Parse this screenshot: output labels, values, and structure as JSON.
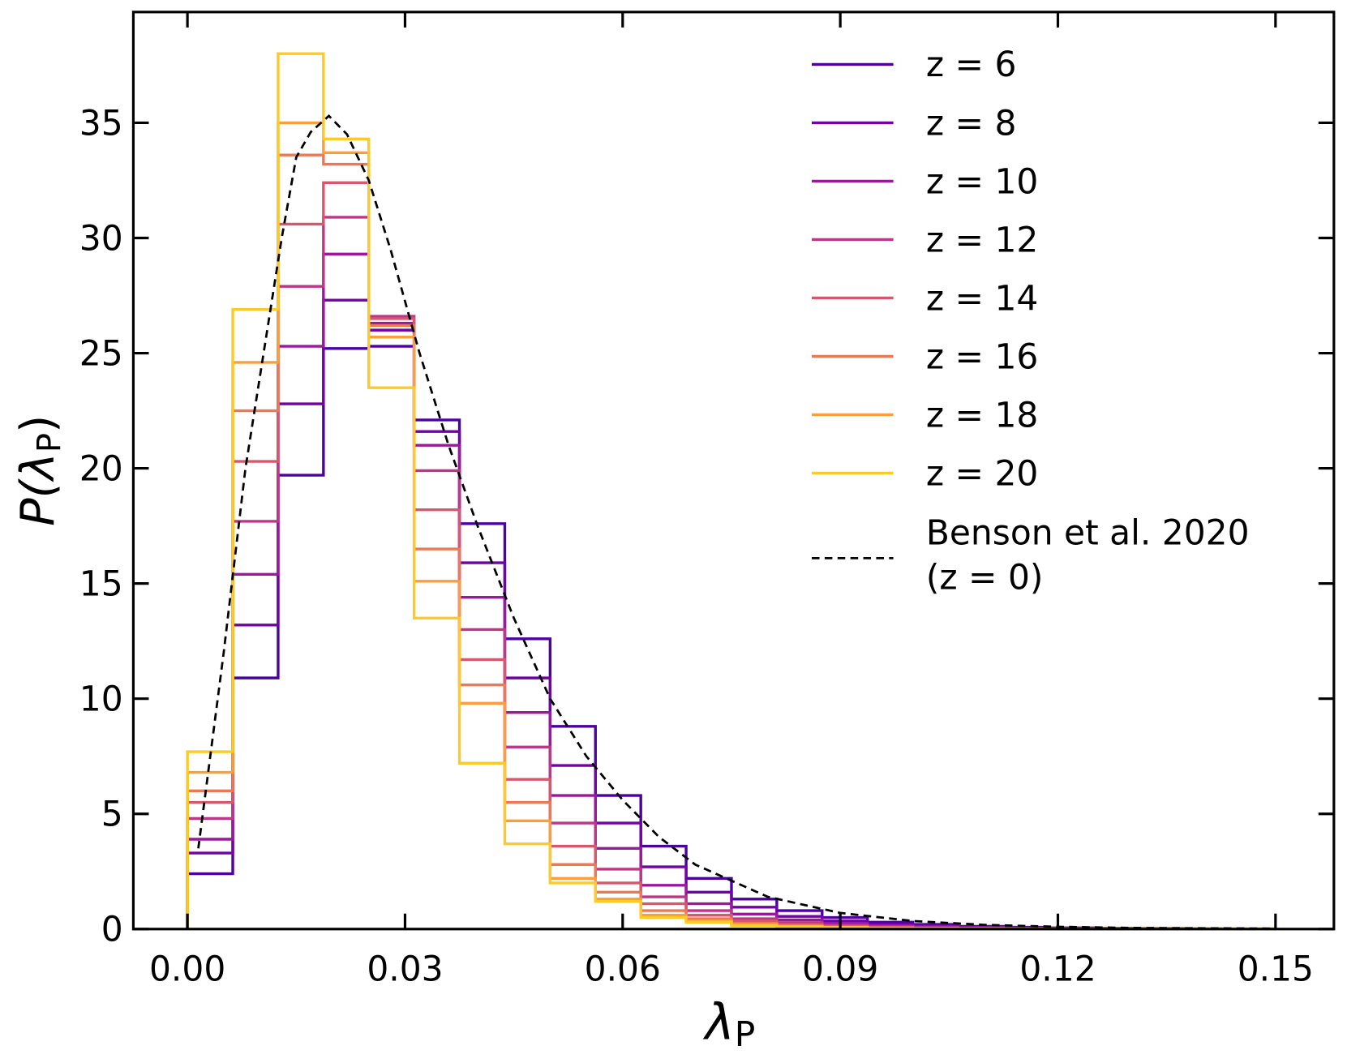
{
  "chart_data": {
    "type": "histogram-step",
    "xlabel": "λ",
    "xlabel_sub": "P",
    "ylabel": "P(λ",
    "ylabel_sub": "P",
    "ylabel_close": ")",
    "xlim": [
      -0.0125,
      0.1535
    ],
    "ylim": [
      0,
      38.4
    ],
    "xticks": [
      0.0,
      0.03,
      0.06,
      0.09,
      0.12,
      0.15
    ],
    "xtick_labels": [
      "0.00",
      "0.03",
      "0.06",
      "0.09",
      "0.12",
      "0.15"
    ],
    "yticks": [
      0,
      5,
      10,
      15,
      20,
      25,
      30,
      35
    ],
    "ytick_labels": [
      "0",
      "5",
      "10",
      "15",
      "20",
      "25",
      "30",
      "35"
    ],
    "bin_width": 0.00625,
    "legend_position": "top-right",
    "series": [
      {
        "name": "z = 6",
        "color": "#4c02a1",
        "values": [
          2.4,
          10.9,
          19.7,
          25.2,
          25.3,
          22.1,
          17.6,
          12.6,
          8.8,
          5.8,
          3.6,
          2.2,
          1.3,
          0.8,
          0.5,
          0.3,
          0.2,
          0.12,
          0.08,
          0.05,
          0.03,
          0.02,
          0.01,
          0.01
        ]
      },
      {
        "name": "z = 8",
        "color": "#7301a8",
        "values": [
          3.3,
          13.2,
          22.8,
          27.3,
          26.0,
          21.6,
          15.9,
          10.9,
          7.1,
          4.6,
          2.7,
          1.6,
          0.95,
          0.55,
          0.35,
          0.2,
          0.13,
          0.08,
          0.05,
          0.03,
          0.02,
          0.01,
          0.01,
          0.0
        ]
      },
      {
        "name": "z = 10",
        "color": "#9c179e",
        "values": [
          3.9,
          15.4,
          25.3,
          29.3,
          26.3,
          21.0,
          14.4,
          9.4,
          5.8,
          3.5,
          1.9,
          1.1,
          0.65,
          0.4,
          0.25,
          0.15,
          0.1,
          0.06,
          0.04,
          0.02,
          0.01,
          0.01,
          0.0,
          0.0
        ]
      },
      {
        "name": "z = 12",
        "color": "#bd3786",
        "values": [
          4.8,
          17.7,
          27.9,
          30.9,
          26.6,
          19.9,
          13.0,
          7.9,
          4.6,
          2.6,
          1.4,
          0.8,
          0.45,
          0.28,
          0.17,
          0.1,
          0.06,
          0.04,
          0.02,
          0.01,
          0.01,
          0.0,
          0.0,
          0.0
        ]
      },
      {
        "name": "z = 14",
        "color": "#d8576b",
        "values": [
          5.5,
          20.3,
          30.6,
          32.4,
          26.5,
          18.2,
          11.7,
          6.5,
          3.6,
          2.0,
          1.1,
          0.6,
          0.35,
          0.2,
          0.12,
          0.07,
          0.04,
          0.02,
          0.01,
          0.01,
          0.0,
          0.0,
          0.0,
          0.0
        ]
      },
      {
        "name": "z = 16",
        "color": "#ed7953",
        "values": [
          6.0,
          22.5,
          33.6,
          33.2,
          26.2,
          16.5,
          10.6,
          5.5,
          2.8,
          1.6,
          0.8,
          0.45,
          0.25,
          0.15,
          0.09,
          0.05,
          0.03,
          0.02,
          0.01,
          0.0,
          0.0,
          0.0,
          0.0,
          0.0
        ]
      },
      {
        "name": "z = 18",
        "color": "#fb9f3a",
        "values": [
          6.8,
          24.6,
          35.0,
          33.7,
          25.7,
          15.1,
          9.8,
          4.7,
          2.2,
          1.3,
          0.6,
          0.35,
          0.2,
          0.12,
          0.07,
          0.04,
          0.02,
          0.01,
          0.01,
          0.0,
          0.0,
          0.0,
          0.0,
          0.0
        ]
      },
      {
        "name": "z = 20",
        "color": "#fdca26",
        "values": [
          7.7,
          26.9,
          38.0,
          34.3,
          23.5,
          13.5,
          7.2,
          3.7,
          2.0,
          1.2,
          0.5,
          0.3,
          0.15,
          0.1,
          0.06,
          0.03,
          0.02,
          0.01,
          0.0,
          0.0,
          0.0,
          0.0,
          0.0,
          0.0
        ]
      }
    ],
    "reference": {
      "name_line1": "Benson et al. 2020",
      "name_line2": "(z = 0)",
      "color": "#000000",
      "style": "dashed",
      "x": [
        0.0015,
        0.005,
        0.008,
        0.011,
        0.013,
        0.015,
        0.017,
        0.0195,
        0.022,
        0.025,
        0.028,
        0.032,
        0.036,
        0.04,
        0.045,
        0.05,
        0.055,
        0.06,
        0.065,
        0.07,
        0.08,
        0.09,
        0.1,
        0.11,
        0.12,
        0.13,
        0.15
      ],
      "y": [
        3.5,
        12,
        20,
        26,
        30,
        33.5,
        34.6,
        35.3,
        34.5,
        32.5,
        29.5,
        25,
        21,
        17.5,
        13.5,
        10,
        7.5,
        5.6,
        4,
        2.8,
        1.4,
        0.7,
        0.35,
        0.18,
        0.1,
        0.05,
        0.02
      ]
    }
  }
}
